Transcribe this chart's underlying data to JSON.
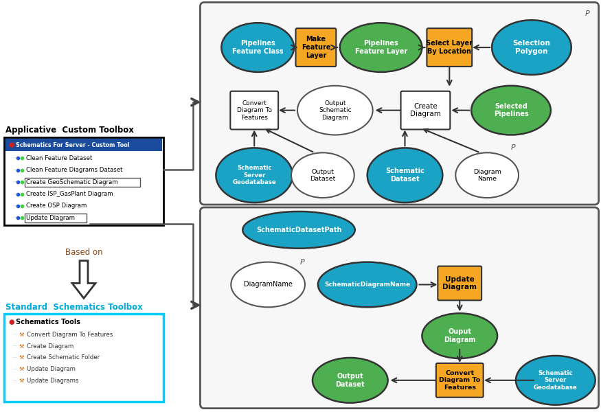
{
  "colors": {
    "teal": "#1BA3C6",
    "green": "#4DAF50",
    "orange": "#F5A623",
    "white": "#FFFFFF",
    "gray": "#555555",
    "cyan": "#00CCFF",
    "dark_blue": "#1A4B9C"
  },
  "custom_toolbox": {
    "title": "Applicative  Custom Toolbox",
    "header": "Schematics For Server - Custom Tool",
    "items": [
      "Clean Feature Dataset",
      "Clean Feature Diagrams Dataset",
      "Create GeoSchematic Diagram",
      "Create ISP_GasPlant Diagram",
      "Create OSP Diagram",
      "Update Diagram"
    ],
    "highlight_idx": [
      2,
      5
    ]
  },
  "standard_toolbox": {
    "title": "Standard  Schematics Toolbox",
    "header": "Schematics Tools",
    "items": [
      "Convert Diagram To Features",
      "Create Diagram",
      "Create Schematic Folder",
      "Update Diagram",
      "Update Diagrams"
    ]
  }
}
